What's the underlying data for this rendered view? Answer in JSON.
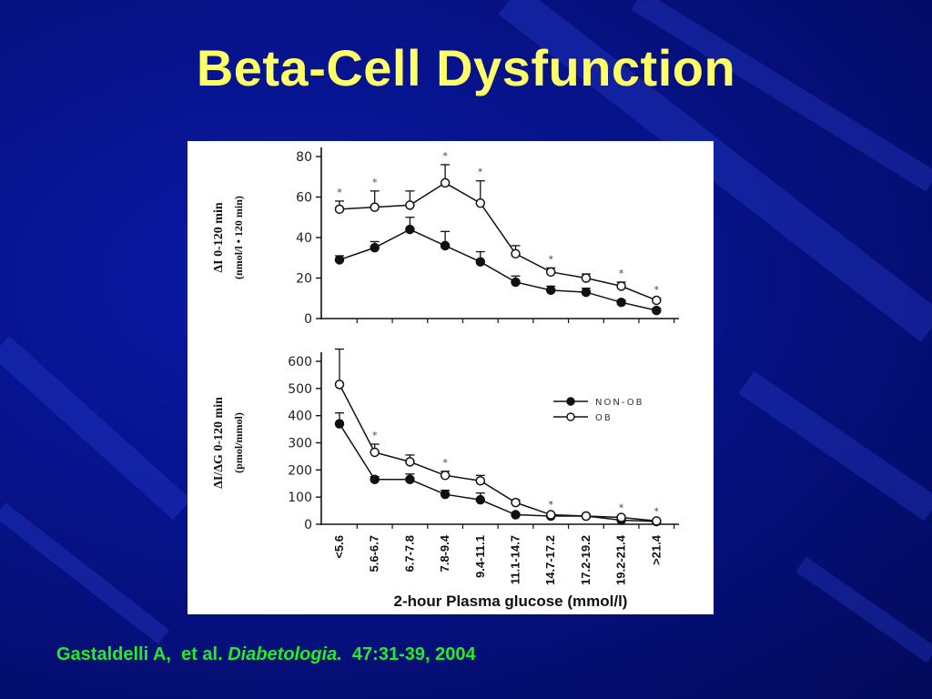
{
  "slide": {
    "title": "Beta-Cell Dysfunction",
    "citation": {
      "authors": "Gastaldelli A,  et al. ",
      "journal": "Diabetologia.",
      "ref": "  47:31-39, 2004"
    }
  },
  "colors": {
    "background": "#061288",
    "title": "#ffff66",
    "citation": "#22ee22"
  },
  "chart_data": [
    {
      "type": "line",
      "ylabel_line1": "ΔI 0-120 min",
      "ylabel_line2": "(nmol/l • 120 min)",
      "ylim": [
        0,
        80
      ],
      "yticks": [
        "0",
        "20",
        "40",
        "60",
        "80"
      ],
      "categories": [
        "<5.6",
        "5.6-6.7",
        "6.7-7.8",
        "7.8-9.4",
        "9.4-11.1",
        "11.1-14.7",
        "14.7-17.2",
        "17.2-19.2",
        "19.2-21.4",
        ">21.4"
      ],
      "series": [
        {
          "name": "NON-OB",
          "values": [
            29,
            35,
            44,
            36,
            28,
            18,
            14,
            13,
            8,
            4
          ],
          "err": [
            2,
            3,
            6,
            7,
            5,
            3,
            2,
            2,
            1,
            1
          ]
        },
        {
          "name": "OB",
          "values": [
            54,
            55,
            56,
            67,
            57,
            32,
            23,
            20,
            16,
            9
          ],
          "err": [
            4,
            8,
            7,
            9,
            11,
            4,
            2,
            2,
            2,
            1
          ]
        }
      ],
      "significant": [
        true,
        true,
        false,
        true,
        true,
        false,
        true,
        false,
        true,
        true
      ]
    },
    {
      "type": "line",
      "ylabel_line1": "ΔI/ΔG 0-120 min",
      "ylabel_line2": "(pmol/mmol)",
      "ylim": [
        0,
        600
      ],
      "yticks": [
        "0",
        "100",
        "200",
        "300",
        "400",
        "500",
        "600"
      ],
      "xlabel": "2-hour Plasma  glucose (mmol/l)",
      "categories": [
        "<5.6",
        "5.6-6.7",
        "6.7-7.8",
        "7.8-9.4",
        "9.4-11.1",
        "11.1-14.7",
        "14.7-17.2",
        "17.2-19.2",
        "19.2-21.4",
        ">21.4"
      ],
      "series": [
        {
          "name": "NON-OB",
          "values": [
            370,
            165,
            165,
            110,
            90,
            35,
            30,
            30,
            15,
            10
          ],
          "err": [
            40,
            10,
            20,
            15,
            25,
            5,
            5,
            5,
            4,
            3
          ]
        },
        {
          "name": "OB",
          "values": [
            515,
            265,
            230,
            180,
            160,
            80,
            35,
            30,
            25,
            12
          ],
          "err": [
            130,
            30,
            25,
            15,
            20,
            10,
            5,
            4,
            4,
            3
          ]
        }
      ],
      "significant": [
        false,
        true,
        false,
        true,
        false,
        false,
        true,
        false,
        true,
        true
      ],
      "legend": {
        "position": "right",
        "entries": [
          "NON-OB",
          "OB"
        ]
      }
    }
  ]
}
